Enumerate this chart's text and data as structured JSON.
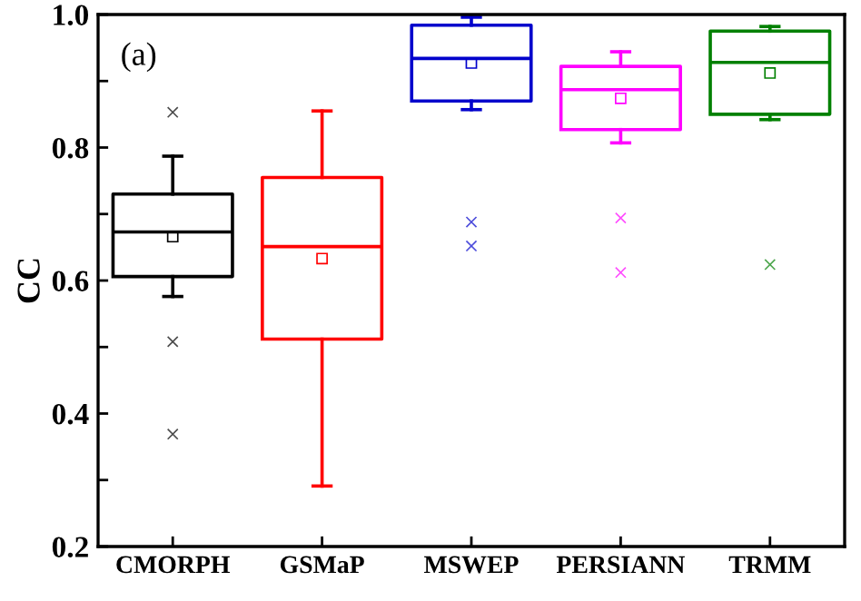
{
  "chart_data": {
    "type": "box",
    "ylabel": "CC",
    "annotations": [
      "(a)"
    ],
    "categories": [
      "CMORPH",
      "GSMaP",
      "MSWEP",
      "PERSIANN",
      "TRMM"
    ],
    "colors": [
      "#000000",
      "#ff0000",
      "#0000cc",
      "#ff00ff",
      "#008000"
    ],
    "boxes": [
      {
        "low": 0.576,
        "q1": 0.606,
        "median": 0.673,
        "q3": 0.73,
        "high": 0.787,
        "mean": 0.666,
        "outliers": [
          0.853,
          0.508,
          0.369
        ]
      },
      {
        "low": 0.291,
        "q1": 0.512,
        "median": 0.651,
        "q3": 0.755,
        "high": 0.855,
        "mean": 0.633
      },
      {
        "low": 0.857,
        "q1": 0.87,
        "median": 0.934,
        "q3": 0.984,
        "high": 0.996,
        "mean": 0.927,
        "outliers": [
          0.688,
          0.652
        ]
      },
      {
        "low": 0.807,
        "q1": 0.827,
        "median": 0.887,
        "q3": 0.922,
        "high": 0.944,
        "mean": 0.874,
        "outliers": [
          0.694,
          0.612
        ]
      },
      {
        "low": 0.842,
        "q1": 0.85,
        "median": 0.928,
        "q3": 0.975,
        "high": 0.982,
        "mean": 0.912,
        "outliers": [
          0.624
        ]
      }
    ],
    "ylim": [
      0.2,
      1.0
    ],
    "yticks": [
      {
        "value": 0.2,
        "label": "0.2"
      },
      {
        "value": 0.3,
        "label": null
      },
      {
        "value": 0.4,
        "label": "0.4"
      },
      {
        "value": 0.5,
        "label": null
      },
      {
        "value": 0.6,
        "label": "0.6"
      },
      {
        "value": 0.7,
        "label": null
      },
      {
        "value": 0.8,
        "label": "0.8"
      },
      {
        "value": 0.9,
        "label": null
      },
      {
        "value": 1.0,
        "label": "1.0"
      }
    ],
    "marker": "cross",
    "grid": false
  }
}
